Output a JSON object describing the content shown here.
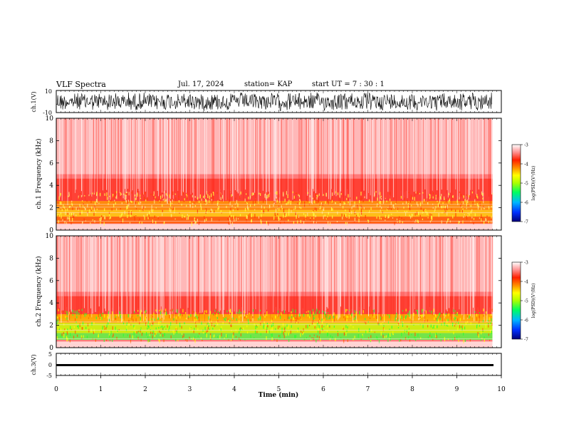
{
  "header": {
    "title": "VLF Spectra",
    "date": "Jul. 17, 2024",
    "station": "station= KAP",
    "start": "start UT = 7 : 30 : 1"
  },
  "chart_data": [
    {
      "type": "line",
      "panel": "top-waveform",
      "ylabel": "ch.1(V)",
      "ylim": [
        -10,
        10
      ],
      "ytick_labels": [
        "10",
        "-10"
      ],
      "xlim": [
        0,
        10
      ]
    },
    {
      "type": "heatmap",
      "panel": "spectrogram-1",
      "ylabel": "ch.1 Frequency (kHz)",
      "ylim": [
        0,
        10
      ],
      "ytick_labels": [
        "0",
        "2",
        "4",
        "6",
        "8",
        "10"
      ],
      "xlim": [
        0,
        10
      ],
      "data_extent_min": 9.8,
      "colorbar": {
        "label": "log(PSD)(V²/Hz)",
        "ticks": [
          "-3",
          "-4",
          "-5",
          "-6",
          "-7"
        ],
        "range": [
          -7,
          -3
        ],
        "colors": [
          "#00007a",
          "#0030ff",
          "#00b8ff",
          "#00ff60",
          "#aaff00",
          "#ffff00",
          "#ff8c00",
          "#ff2000",
          "#ff9090",
          "#ffffff"
        ]
      }
    },
    {
      "type": "heatmap",
      "panel": "spectrogram-2",
      "ylabel": "ch.2 Frequency (kHz)",
      "ylim": [
        0,
        10
      ],
      "ytick_labels": [
        "0",
        "2",
        "4",
        "6",
        "8",
        "10"
      ],
      "xlim": [
        0,
        10
      ],
      "data_extent_min": 9.8,
      "colorbar": {
        "label": "log(PSD)(V²/Hz)",
        "ticks": [
          "-3",
          "-4",
          "-5",
          "-6",
          "-7"
        ],
        "range": [
          -7,
          -3
        ]
      }
    },
    {
      "type": "line",
      "panel": "bottom-waveform",
      "ylabel": "ch.3(V)",
      "ylim": [
        -5,
        5
      ],
      "ytick_labels": [
        "5",
        "0",
        "-5"
      ],
      "xlim": [
        0,
        10
      ]
    }
  ],
  "xaxis": {
    "label": "Time (min)",
    "ticks": [
      "0",
      "1",
      "2",
      "3",
      "4",
      "5",
      "6",
      "7",
      "8",
      "9",
      "10"
    ]
  }
}
